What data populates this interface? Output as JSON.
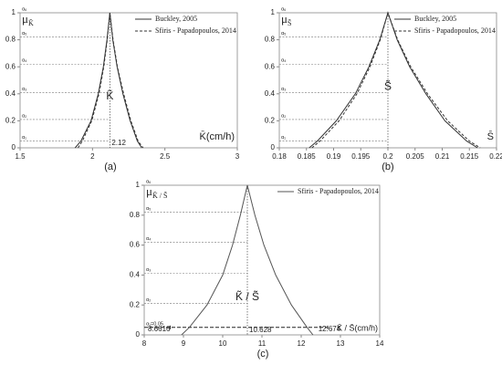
{
  "chart_data": [
    {
      "type": "line",
      "caption": "(a)",
      "ylabel": "μ",
      "ylabel_sub": "K̃",
      "xlabel": "K̄(cm/h)",
      "mid_label": "K̃",
      "xlim": [
        1.5,
        3
      ],
      "ylim": [
        0,
        1
      ],
      "xticks": [
        1.5,
        2,
        2.5,
        3
      ],
      "yticks": [
        0,
        0.2,
        0.4,
        0.6,
        0.8,
        1
      ],
      "alpha_levels": [
        {
          "value": 0.05,
          "label": "α₁"
        },
        {
          "value": 0.21,
          "label": "α₂"
        },
        {
          "value": 0.41,
          "label": "α₃"
        },
        {
          "value": 0.62,
          "label": "α₄"
        },
        {
          "value": 0.82,
          "label": "α₅"
        },
        {
          "value": 1,
          "label": "α₆"
        }
      ],
      "peak": {
        "value": 2.12,
        "label": "2.12"
      },
      "legend": "upper right",
      "series": [
        {
          "name": "Buckley, 2005",
          "color": "#333333",
          "dash": false,
          "x": [
            1.88,
            1.92,
            1.99,
            2.04,
            2.075,
            2.1,
            2.12,
            2.14,
            2.17,
            2.21,
            2.26,
            2.31,
            2.34
          ],
          "values": [
            0,
            0.05,
            0.2,
            0.4,
            0.6,
            0.8,
            1,
            0.8,
            0.6,
            0.4,
            0.2,
            0.05,
            0
          ]
        },
        {
          "name": "Sfiris - Papadopoulos, 2014",
          "color": "#333333",
          "dash": true,
          "x": [
            1.9,
            1.93,
            1.995,
            2.045,
            2.078,
            2.102,
            2.12,
            2.142,
            2.172,
            2.215,
            2.265,
            2.315,
            2.35
          ],
          "values": [
            0,
            0.05,
            0.2,
            0.4,
            0.6,
            0.8,
            1,
            0.8,
            0.6,
            0.4,
            0.2,
            0.05,
            0
          ]
        }
      ]
    },
    {
      "type": "line",
      "caption": "(b)",
      "ylabel": "μ",
      "ylabel_sub": "S̃",
      "xlabel": "S̄",
      "mid_label": "S̃",
      "xlim": [
        0.18,
        0.22
      ],
      "ylim": [
        0,
        1
      ],
      "xticks": [
        0.18,
        0.185,
        0.19,
        0.195,
        0.2,
        0.205,
        0.21,
        0.215,
        0.22
      ],
      "yticks": [
        0,
        0.2,
        0.4,
        0.6,
        0.8,
        1
      ],
      "alpha_levels": [
        {
          "value": 0.05,
          "label": "α₁"
        },
        {
          "value": 0.21,
          "label": "α₂"
        },
        {
          "value": 0.41,
          "label": "α₃"
        },
        {
          "value": 0.62,
          "label": "α₄"
        },
        {
          "value": 0.82,
          "label": "α₅"
        },
        {
          "value": 1,
          "label": "α₆"
        }
      ],
      "peak": {
        "value": 0.2
      },
      "legend": "upper right",
      "series": [
        {
          "name": "Buckley, 2005",
          "color": "#333333",
          "dash": false,
          "x": [
            0.1855,
            0.187,
            0.1905,
            0.194,
            0.1965,
            0.1985,
            0.2,
            0.2017,
            0.204,
            0.207,
            0.2105,
            0.2145,
            0.2165
          ],
          "values": [
            0,
            0.05,
            0.2,
            0.4,
            0.6,
            0.8,
            1,
            0.8,
            0.6,
            0.4,
            0.2,
            0.05,
            0
          ]
        },
        {
          "name": "Sfiris - Papadopoulos, 2014",
          "color": "#333333",
          "dash": true,
          "x": [
            0.186,
            0.1875,
            0.191,
            0.1943,
            0.1967,
            0.1986,
            0.2,
            0.2018,
            0.2042,
            0.2073,
            0.211,
            0.215,
            0.217
          ],
          "values": [
            0,
            0.05,
            0.2,
            0.4,
            0.6,
            0.8,
            1,
            0.8,
            0.6,
            0.4,
            0.2,
            0.05,
            0
          ]
        }
      ]
    },
    {
      "type": "line",
      "caption": "(c)",
      "ylabel": "μ",
      "ylabel_sub": "K̃ / S̃",
      "xlabel": "K̄ / S̄(cm/h)",
      "mid_label": "K̃ / S̃",
      "xlim": [
        8,
        14
      ],
      "ylim": [
        0,
        1
      ],
      "xticks": [
        8,
        9,
        10,
        11,
        12,
        13,
        14
      ],
      "yticks": [
        0,
        0.2,
        0.4,
        0.6,
        0.8,
        1
      ],
      "alpha_levels": [
        {
          "value": 0.05,
          "label": "α₁=0.05"
        },
        {
          "value": 0.21,
          "label": "α₂"
        },
        {
          "value": 0.41,
          "label": "α₃"
        },
        {
          "value": 0.62,
          "label": "α₄"
        },
        {
          "value": 0.82,
          "label": "α₅"
        },
        {
          "value": 1,
          "label": "α₆"
        }
      ],
      "peak": {
        "value": 10.628,
        "label": "10.628"
      },
      "bounds": [
        {
          "value": 8.6616,
          "label": "8.6616"
        },
        {
          "value": 12.674,
          "label": "12.674"
        }
      ],
      "legend": "upper right",
      "series": [
        {
          "name": "Sfiris - Papadopoulos, 2014",
          "color": "#555555",
          "dash": false,
          "x": [
            8.95,
            9.15,
            9.6,
            10.0,
            10.25,
            10.45,
            10.628,
            10.82,
            11.05,
            11.35,
            11.75,
            12.15,
            12.3
          ],
          "values": [
            0,
            0.05,
            0.2,
            0.4,
            0.6,
            0.8,
            1,
            0.8,
            0.6,
            0.4,
            0.2,
            0.05,
            0
          ]
        }
      ]
    }
  ]
}
